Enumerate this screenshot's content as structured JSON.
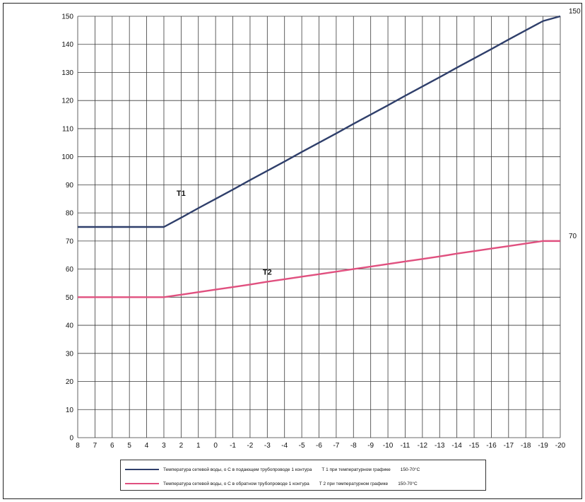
{
  "chart_data": {
    "type": "line",
    "x": [
      "8",
      "7",
      "6",
      "5",
      "4",
      "3",
      "2",
      "1",
      "0",
      "-1",
      "-2",
      "-3",
      "-4",
      "-5",
      "-6",
      "-7",
      "-8",
      "-9",
      "-10",
      "-11",
      "-12",
      "-13",
      "-14",
      "-15",
      "-16",
      "-17",
      "-18",
      "-19",
      "-20"
    ],
    "ylim": [
      0,
      150
    ],
    "yticks": [
      0,
      10,
      20,
      30,
      40,
      50,
      60,
      70,
      80,
      90,
      100,
      110,
      120,
      130,
      140,
      150
    ],
    "grid": true,
    "series": [
      {
        "name": "T1",
        "color": "#2f3f6b",
        "values": [
          75,
          75,
          75,
          75,
          75,
          75,
          78.3,
          81.7,
          85,
          88.3,
          91.7,
          95,
          98.3,
          101.7,
          105,
          108.3,
          111.7,
          115,
          118.3,
          121.7,
          125,
          128.3,
          131.7,
          135,
          138.3,
          141.7,
          145,
          148.3,
          150
        ]
      },
      {
        "name": "T2",
        "color": "#e0507f",
        "values": [
          50,
          50,
          50,
          50,
          50,
          50,
          50.9,
          51.8,
          52.7,
          53.6,
          54.5,
          55.5,
          56.4,
          57.3,
          58.2,
          59.1,
          60,
          60.9,
          61.8,
          62.7,
          63.6,
          64.5,
          65.5,
          66.4,
          67.3,
          68.2,
          69.1,
          70,
          70
        ]
      }
    ],
    "annotations": [
      {
        "text": "T1",
        "x": "2",
        "y": 84
      },
      {
        "text": "T2",
        "x": "-3",
        "y": 56
      },
      {
        "text": "150",
        "x": "-20",
        "y": 150
      },
      {
        "text": "70",
        "x": "-20",
        "y": 70
      }
    ],
    "legend": {
      "position": "bottom",
      "entries": [
        {
          "color": "#2f3f6b",
          "label": "Температура сетевой воды, о С в подающем трубопроводе  1 контура",
          "curve": "Т 1  при температурном графике",
          "schedule": "150-70°С"
        },
        {
          "color": "#e0507f",
          "label": "Температура сетевой воды, о С в обратном трубопроводе   1 контура",
          "curve": "Т 2  при температурном графике",
          "schedule": "150-70°С"
        }
      ]
    }
  }
}
